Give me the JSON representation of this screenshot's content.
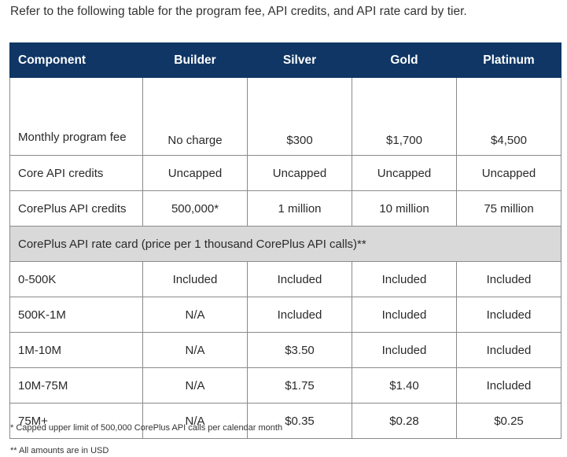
{
  "intro": "Refer to the following table for the program fee, API credits, and API rate card by tier.",
  "table": {
    "headers": [
      "Component",
      "Builder",
      "Silver",
      "Gold",
      "Platinum"
    ],
    "rows": [
      {
        "label": "Monthly program fee",
        "values": [
          "No charge",
          "$300",
          "$1,700",
          "$4,500"
        ]
      },
      {
        "label": "Core API credits",
        "values": [
          "Uncapped",
          "Uncapped",
          "Uncapped",
          "Uncapped"
        ]
      },
      {
        "label": "CorePlus API credits",
        "values": [
          "500,000*",
          "1 million",
          "10 million",
          "75 million"
        ]
      }
    ],
    "section_title": "CorePlus API rate card (price per 1 thousand CorePlus API calls)**",
    "rate_rows": [
      {
        "label": "0-500K",
        "values": [
          "Included",
          "Included",
          "Included",
          "Included"
        ]
      },
      {
        "label": "500K-1M",
        "values": [
          "N/A",
          "Included",
          "Included",
          "Included"
        ]
      },
      {
        "label": "1M-10M",
        "values": [
          "N/A",
          "$3.50",
          "Included",
          "Included"
        ]
      },
      {
        "label": "10M-75M",
        "values": [
          "N/A",
          "$1.75",
          "$1.40",
          "Included"
        ]
      },
      {
        "label": "75M+",
        "values": [
          "N/A",
          "$0.35",
          "$0.28",
          "$0.25"
        ]
      }
    ]
  },
  "footnotes": [
    "* Capped upper limit of 500,000 CorePlus API calls per calendar month",
    "** All amounts are in USD"
  ],
  "colors": {
    "header_bg": "#0f3665",
    "section_bg": "#d9d9d9"
  }
}
